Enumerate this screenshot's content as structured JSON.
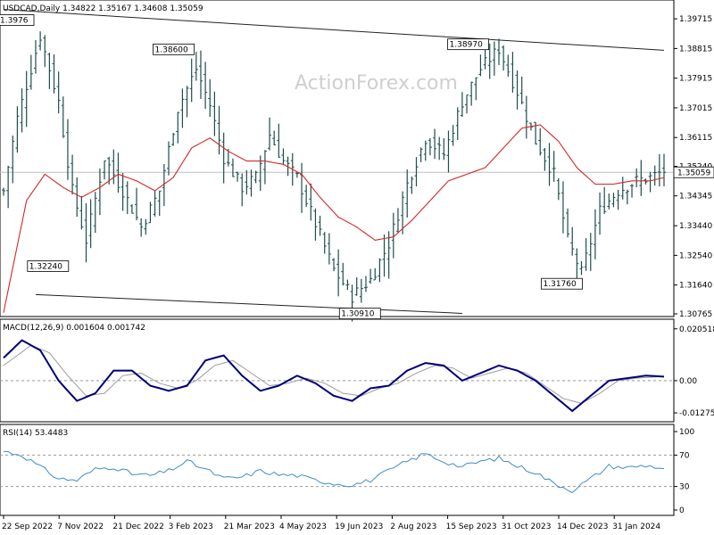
{
  "chart_data": [
    {
      "type": "line",
      "title": "USDCAD,Daily  1.34822 1.35167 1.34608 1.35059",
      "watermark": "ActionForex.com",
      "ylim": [
        1.30765,
        1.4007
      ],
      "yticks": [
        "1.39715",
        "1.38815",
        "1.37915",
        "1.37015",
        "1.36115",
        "1.35240",
        "1.34345",
        "1.33440",
        "1.32540",
        "1.31640",
        "1.30765"
      ],
      "current_price": "1.35059",
      "xticks": [
        "22 Sep 2022",
        "7 Nov 2022",
        "21 Dec 2022",
        "3 Feb 2023",
        "21 Mar 2023",
        "4 May 2023",
        "19 Jun 2023",
        "2 Aug 2023",
        "15 Sep 2023",
        "31 Oct 2023",
        "14 Dec 2023",
        "31 Jan 2024"
      ],
      "annotations": [
        {
          "label": "1.3976",
          "price": 1.3976
        },
        {
          "label": "1.38600",
          "price": 1.386
        },
        {
          "label": "1.32240",
          "price": 1.3224
        },
        {
          "label": "1.38970",
          "price": 1.3897
        },
        {
          "label": "1.30910",
          "price": 1.3091
        },
        {
          "label": "1.31760",
          "price": 1.3176
        }
      ],
      "price_anchors": [
        [
          0,
          1.345
        ],
        [
          3,
          1.367
        ],
        [
          8,
          1.392
        ],
        [
          12,
          1.372
        ],
        [
          15,
          1.345
        ],
        [
          18,
          1.33
        ],
        [
          22,
          1.355
        ],
        [
          26,
          1.345
        ],
        [
          30,
          1.334
        ],
        [
          34,
          1.345
        ],
        [
          38,
          1.37
        ],
        [
          42,
          1.382
        ],
        [
          45,
          1.371
        ],
        [
          48,
          1.355
        ],
        [
          52,
          1.346
        ],
        [
          55,
          1.349
        ],
        [
          58,
          1.362
        ],
        [
          61,
          1.354
        ],
        [
          64,
          1.349
        ],
        [
          68,
          1.335
        ],
        [
          72,
          1.321
        ],
        [
          76,
          1.313
        ],
        [
          80,
          1.318
        ],
        [
          84,
          1.329
        ],
        [
          88,
          1.347
        ],
        [
          92,
          1.361
        ],
        [
          96,
          1.356
        ],
        [
          100,
          1.372
        ],
        [
          104,
          1.382
        ],
        [
          108,
          1.388
        ],
        [
          112,
          1.375
        ],
        [
          116,
          1.36
        ],
        [
          120,
          1.35
        ],
        [
          123,
          1.33
        ],
        [
          126,
          1.32
        ],
        [
          130,
          1.339
        ],
        [
          134,
          1.345
        ],
        [
          138,
          1.348
        ],
        [
          141,
          1.349
        ],
        [
          144,
          1.351
        ]
      ],
      "ma_anchors": [
        [
          0,
          1.308
        ],
        [
          5,
          1.342
        ],
        [
          9,
          1.35
        ],
        [
          13,
          1.346
        ],
        [
          17,
          1.343
        ],
        [
          21,
          1.346
        ],
        [
          25,
          1.35
        ],
        [
          29,
          1.348
        ],
        [
          33,
          1.345
        ],
        [
          37,
          1.349
        ],
        [
          41,
          1.358
        ],
        [
          45,
          1.361
        ],
        [
          49,
          1.357
        ],
        [
          53,
          1.354
        ],
        [
          57,
          1.354
        ],
        [
          61,
          1.353
        ],
        [
          65,
          1.35
        ],
        [
          69,
          1.343
        ],
        [
          73,
          1.337
        ],
        [
          77,
          1.334
        ],
        [
          81,
          1.33
        ],
        [
          85,
          1.331
        ],
        [
          89,
          1.336
        ],
        [
          93,
          1.342
        ],
        [
          97,
          1.348
        ],
        [
          101,
          1.35
        ],
        [
          105,
          1.352
        ],
        [
          109,
          1.358
        ],
        [
          113,
          1.364
        ],
        [
          117,
          1.365
        ],
        [
          121,
          1.36
        ],
        [
          125,
          1.352
        ],
        [
          129,
          1.347
        ],
        [
          133,
          1.347
        ],
        [
          137,
          1.348
        ],
        [
          141,
          1.348
        ],
        [
          144,
          1.349
        ]
      ],
      "channel_upper": [
        [
          0,
          1.4
        ],
        [
          144,
          1.3876
        ]
      ],
      "channel_lower": [
        [
          7,
          1.3135
        ],
        [
          100,
          1.3078
        ]
      ]
    },
    {
      "type": "line",
      "title": "MACD(12,26,9) 0.001604 0.001742",
      "yticks": [
        "0.020518",
        "0.00",
        "-0.012755"
      ],
      "ylim": [
        -0.0145,
        0.0215
      ],
      "macd_anchors": [
        [
          0,
          0.009
        ],
        [
          4,
          0.016
        ],
        [
          8,
          0.012
        ],
        [
          12,
          0.0
        ],
        [
          16,
          -0.008
        ],
        [
          20,
          -0.005
        ],
        [
          24,
          0.004
        ],
        [
          28,
          0.004
        ],
        [
          32,
          -0.002
        ],
        [
          36,
          -0.004
        ],
        [
          40,
          -0.002
        ],
        [
          44,
          0.008
        ],
        [
          48,
          0.01
        ],
        [
          52,
          0.002
        ],
        [
          56,
          -0.004
        ],
        [
          60,
          -0.002
        ],
        [
          64,
          0.002
        ],
        [
          68,
          -0.001
        ],
        [
          72,
          -0.006
        ],
        [
          76,
          -0.008
        ],
        [
          80,
          -0.003
        ],
        [
          84,
          -0.002
        ],
        [
          88,
          0.004
        ],
        [
          92,
          0.007
        ],
        [
          96,
          0.006
        ],
        [
          100,
          0.0
        ],
        [
          104,
          0.003
        ],
        [
          108,
          0.006
        ],
        [
          112,
          0.004
        ],
        [
          116,
          0.0
        ],
        [
          120,
          -0.006
        ],
        [
          124,
          -0.012
        ],
        [
          128,
          -0.006
        ],
        [
          132,
          0.0
        ],
        [
          136,
          0.001
        ],
        [
          140,
          0.002
        ],
        [
          144,
          0.0016
        ]
      ],
      "signal_anchors": [
        [
          0,
          0.006
        ],
        [
          6,
          0.014
        ],
        [
          10,
          0.011
        ],
        [
          14,
          0.002
        ],
        [
          18,
          -0.006
        ],
        [
          22,
          -0.005
        ],
        [
          26,
          0.002
        ],
        [
          30,
          0.003
        ],
        [
          34,
          -0.001
        ],
        [
          38,
          -0.003
        ],
        [
          42,
          0.0
        ],
        [
          46,
          0.006
        ],
        [
          50,
          0.008
        ],
        [
          54,
          0.003
        ],
        [
          58,
          -0.002
        ],
        [
          62,
          -0.001
        ],
        [
          66,
          0.001
        ],
        [
          70,
          -0.001
        ],
        [
          74,
          -0.005
        ],
        [
          78,
          -0.006
        ],
        [
          82,
          -0.003
        ],
        [
          86,
          -0.001
        ],
        [
          90,
          0.003
        ],
        [
          94,
          0.006
        ],
        [
          98,
          0.005
        ],
        [
          102,
          0.001
        ],
        [
          106,
          0.003
        ],
        [
          110,
          0.005
        ],
        [
          114,
          0.003
        ],
        [
          118,
          -0.002
        ],
        [
          122,
          -0.007
        ],
        [
          126,
          -0.009
        ],
        [
          130,
          -0.005
        ],
        [
          134,
          0.0
        ],
        [
          138,
          0.001
        ],
        [
          144,
          0.0017
        ]
      ]
    },
    {
      "type": "line",
      "title": "RSI(14) 53.4483",
      "yticks": [
        "100",
        "70",
        "30",
        "0"
      ],
      "ylim": [
        0,
        100
      ],
      "rsi_anchors": [
        [
          0,
          75
        ],
        [
          4,
          70
        ],
        [
          8,
          55
        ],
        [
          12,
          40
        ],
        [
          16,
          38
        ],
        [
          20,
          52
        ],
        [
          24,
          55
        ],
        [
          28,
          46
        ],
        [
          32,
          44
        ],
        [
          36,
          50
        ],
        [
          40,
          62
        ],
        [
          44,
          52
        ],
        [
          48,
          40
        ],
        [
          52,
          42
        ],
        [
          56,
          50
        ],
        [
          60,
          45
        ],
        [
          64,
          44
        ],
        [
          68,
          38
        ],
        [
          72,
          34
        ],
        [
          76,
          32
        ],
        [
          80,
          38
        ],
        [
          84,
          50
        ],
        [
          88,
          62
        ],
        [
          92,
          72
        ],
        [
          96,
          62
        ],
        [
          100,
          55
        ],
        [
          104,
          62
        ],
        [
          108,
          66
        ],
        [
          112,
          56
        ],
        [
          116,
          48
        ],
        [
          120,
          34
        ],
        [
          124,
          25
        ],
        [
          128,
          40
        ],
        [
          132,
          56
        ],
        [
          136,
          54
        ],
        [
          140,
          57
        ],
        [
          144,
          53
        ]
      ]
    }
  ],
  "colors": {
    "bars": "#1e4d4d",
    "ma": "#d62728",
    "macd": "#00007a",
    "signal": "#9c9c9c",
    "rsi": "#3d8ec9",
    "channel": "#222222"
  }
}
